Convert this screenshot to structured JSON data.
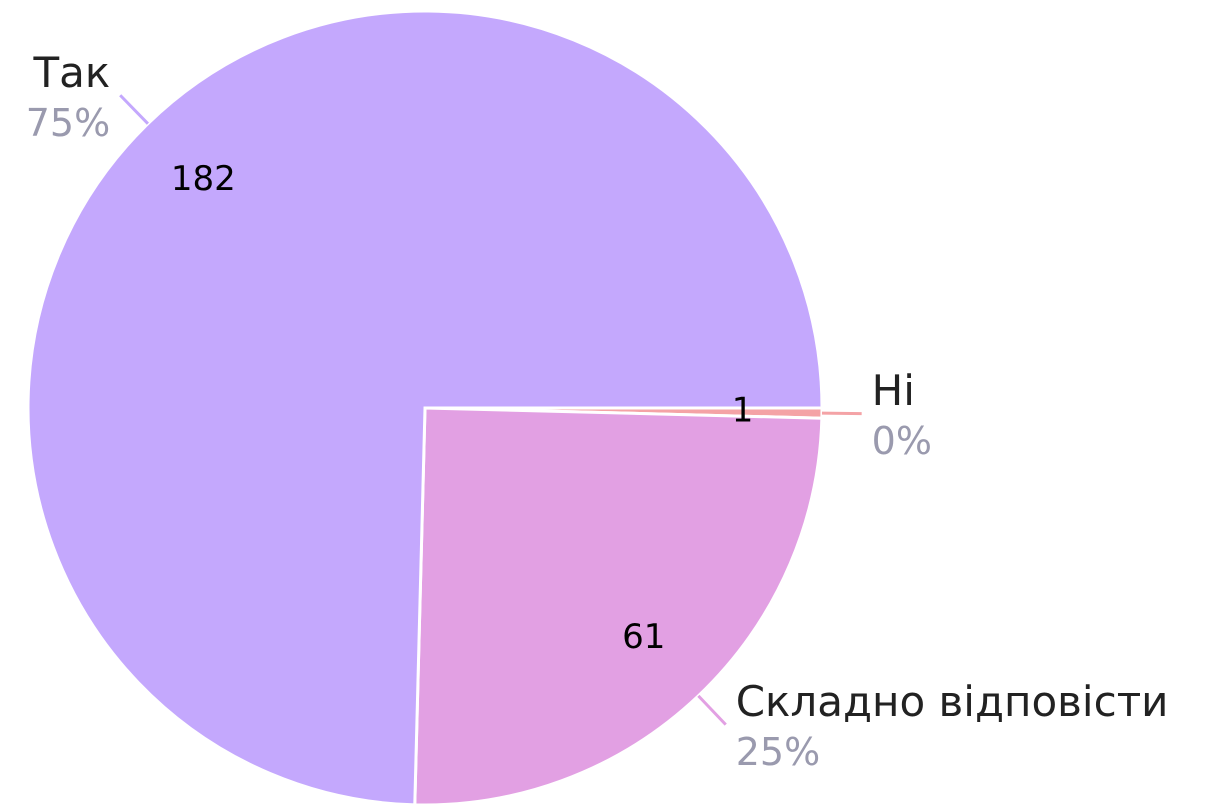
{
  "chart_data": {
    "type": "pie",
    "categories": [
      "Ні",
      "Складно відповісти",
      "Так"
    ],
    "values": [
      1,
      61,
      182
    ],
    "percent_labels": [
      "0%",
      "25%",
      "75%"
    ],
    "colors": [
      "#f4a3a6",
      "#e2a0e3",
      "#c4a8fd"
    ]
  }
}
